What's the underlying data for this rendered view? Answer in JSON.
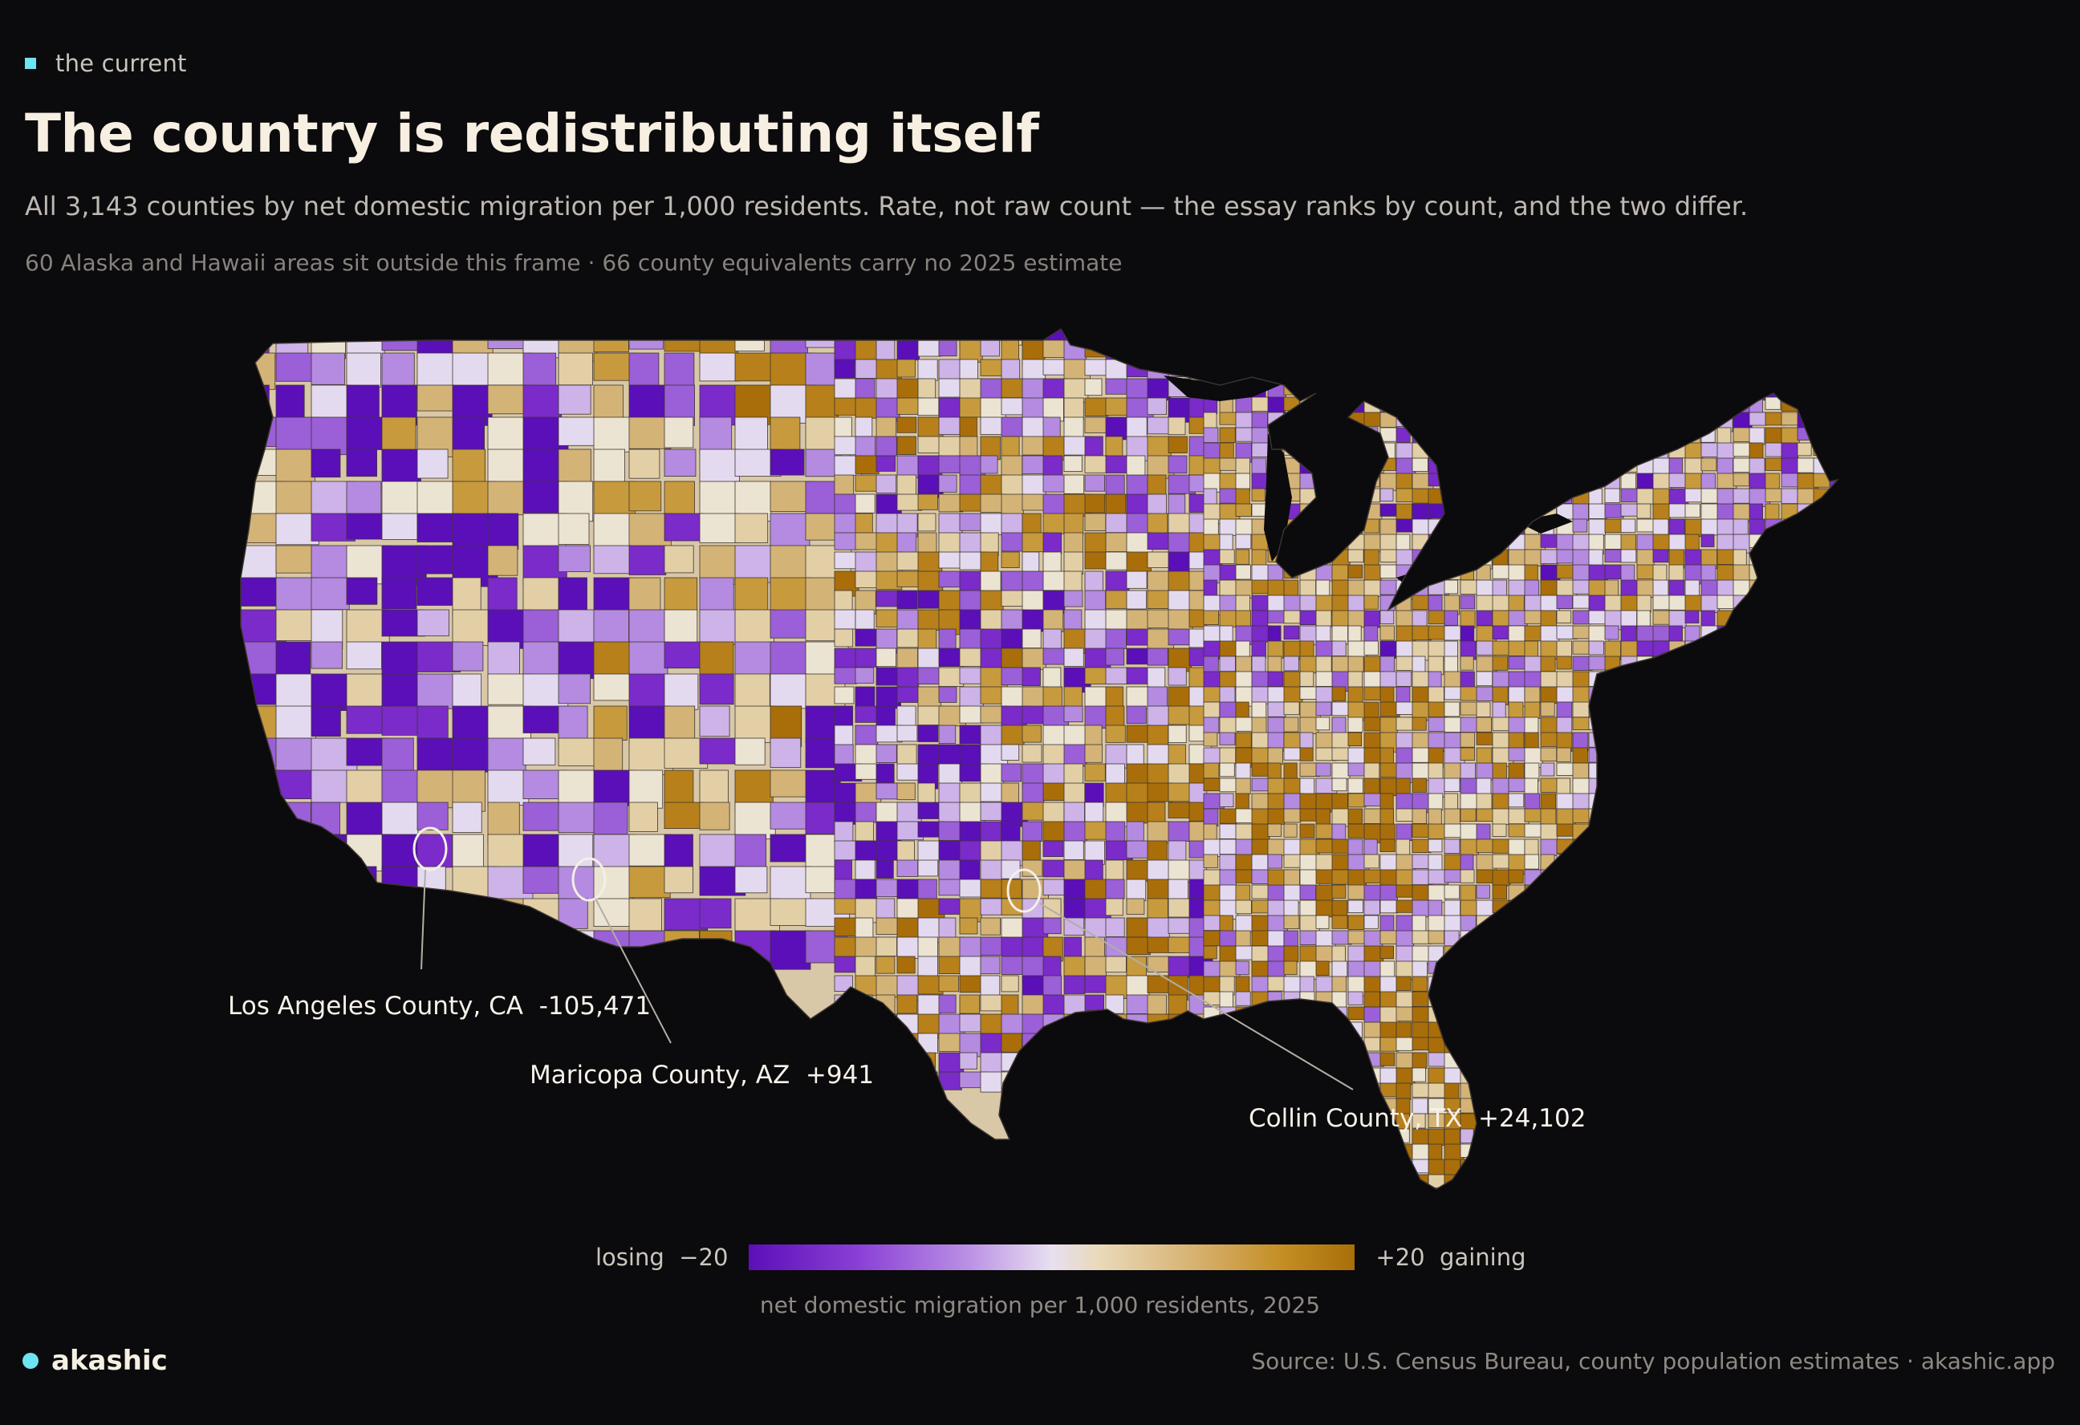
{
  "header": {
    "brand_label": "the current",
    "title": "The country is redistributing itself",
    "subtitle": "All 3,143 counties by net domestic migration per 1,000 residents. Rate, not raw count — the essay ranks by count, and the two differ.",
    "note": "60 Alaska and Hawaii areas sit outside this frame · 66 county equivalents carry no 2025 estimate"
  },
  "map": {
    "region": "contiguous United States",
    "unit_level": "county",
    "metric": "net domestic migration per 1,000 residents, 2025",
    "callouts": [
      {
        "county": "Los Angeles County, CA",
        "value": "-105,471"
      },
      {
        "county": "Maricopa County, AZ",
        "value": "+941"
      },
      {
        "county": "Collin County, TX",
        "value": "+24,102"
      }
    ]
  },
  "legend": {
    "left_label": "losing",
    "left_value": "−20",
    "right_value": "+20",
    "right_label": "gaining",
    "caption": "net domestic migration per 1,000 residents, 2025",
    "scale_min": -20,
    "scale_max": 20,
    "colors": {
      "losing": "#5b0fb8",
      "neutral": "#e8dff0",
      "gaining": "#a96e0a"
    }
  },
  "footer": {
    "brand": "akashic",
    "source": "Source: U.S. Census Bureau, county population estimates · akashic.app"
  },
  "colors": {
    "background": "#0b0a0c",
    "accent": "#6ee3f2",
    "title": "#f6efe2"
  }
}
